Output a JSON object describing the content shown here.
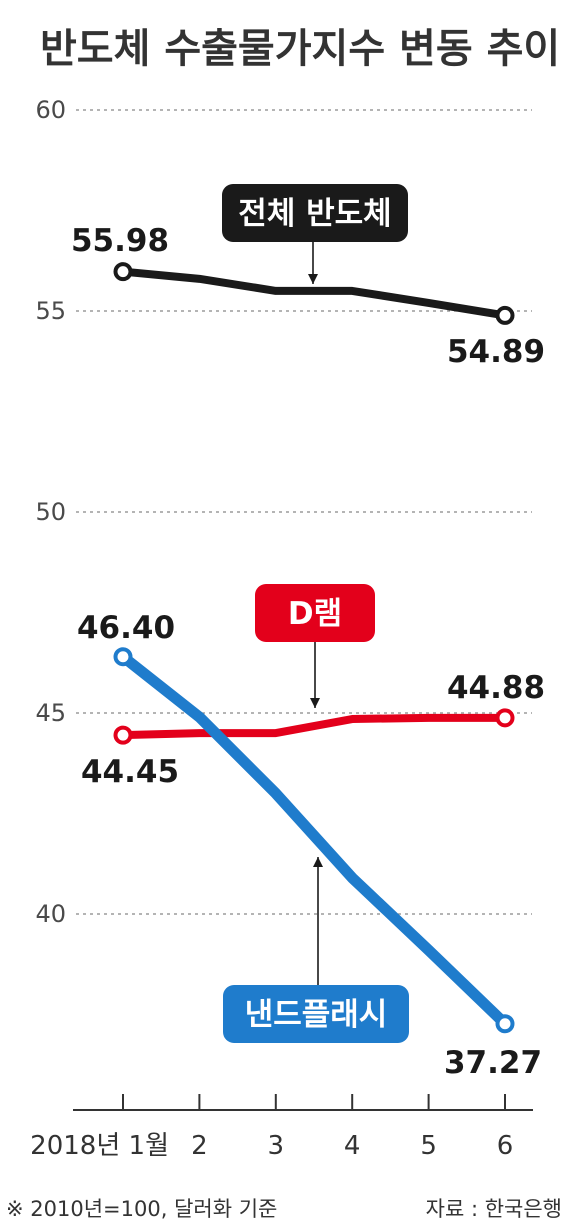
{
  "title": "반도체 수출물가지수 변동 추이",
  "footnote": "※ 2010년=100, 달러화 기준",
  "source": "자료 : 한국은행",
  "colors": {
    "total": "#1a1a1a",
    "dram": "#e3001b",
    "nand": "#1f7ccc",
    "grid": "#888888"
  },
  "chart_data": {
    "type": "line",
    "x": [
      "2018년 1월",
      "2",
      "3",
      "4",
      "5",
      "6"
    ],
    "ylim": [
      35,
      60
    ],
    "yticks": [
      60,
      55,
      50,
      45,
      40
    ],
    "grid": true,
    "series": [
      {
        "name": "전체 반도체",
        "values": [
          55.98,
          55.8,
          55.5,
          55.5,
          55.2,
          54.89
        ],
        "labels": [
          {
            "index": 0,
            "text": "55.98"
          },
          {
            "index": 5,
            "text": "54.89"
          }
        ]
      },
      {
        "name": "D램",
        "values": [
          44.45,
          44.5,
          44.5,
          44.85,
          44.88,
          44.88
        ],
        "labels": [
          {
            "index": 0,
            "text": "44.45"
          },
          {
            "index": 5,
            "text": "44.88"
          }
        ]
      },
      {
        "name": "낸드플래시",
        "values": [
          46.4,
          44.9,
          43.0,
          40.9,
          39.1,
          37.27
        ],
        "labels": [
          {
            "index": 0,
            "text": "46.40"
          },
          {
            "index": 5,
            "text": "37.27"
          }
        ]
      }
    ]
  }
}
